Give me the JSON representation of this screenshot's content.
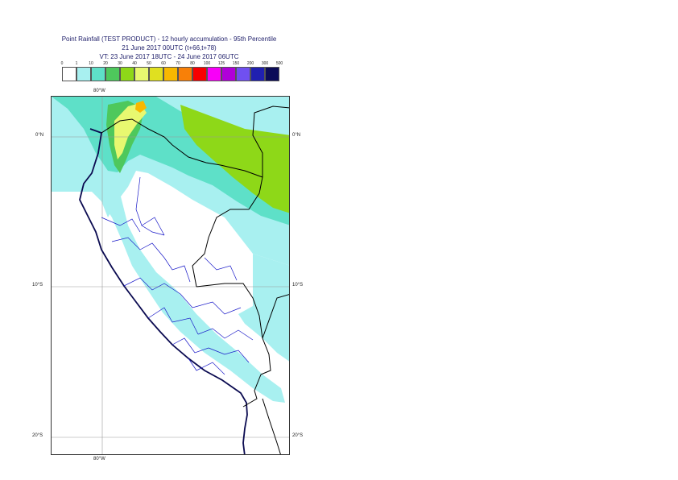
{
  "header": {
    "title_line1": "Point Rainfall (TEST PRODUCT) - 12 hourly accumulation - 95th Percentile",
    "title_line2": "21 June 2017 00UTC (t+66,t+78)",
    "title_line3": "VT: 23 June 2017 18UTC - 24 June 2017 06UTC"
  },
  "legend": {
    "thresholds": [
      "0",
      "1",
      "10",
      "20",
      "30",
      "40",
      "50",
      "60",
      "70",
      "80",
      "100",
      "125",
      "150",
      "200",
      "300",
      "500"
    ],
    "colors": [
      "#ffffff",
      "#a8f0f0",
      "#5ee0c8",
      "#4ec85c",
      "#8ed818",
      "#e8f870",
      "#e0e020",
      "#f8b800",
      "#f88008",
      "#f80000",
      "#f800f8",
      "#b000d8",
      "#7050f0",
      "#2020b0",
      "#0c0c58"
    ]
  },
  "map": {
    "lat_labels": [
      "0°N",
      "10°S",
      "20°S"
    ],
    "lon_label_top": "80°W",
    "lon_label_bottom": "80°W",
    "land_color": "#ffffff",
    "coast_color": "#0a0a50",
    "border_color": "#000000",
    "region_border_color": "#1818c8"
  }
}
